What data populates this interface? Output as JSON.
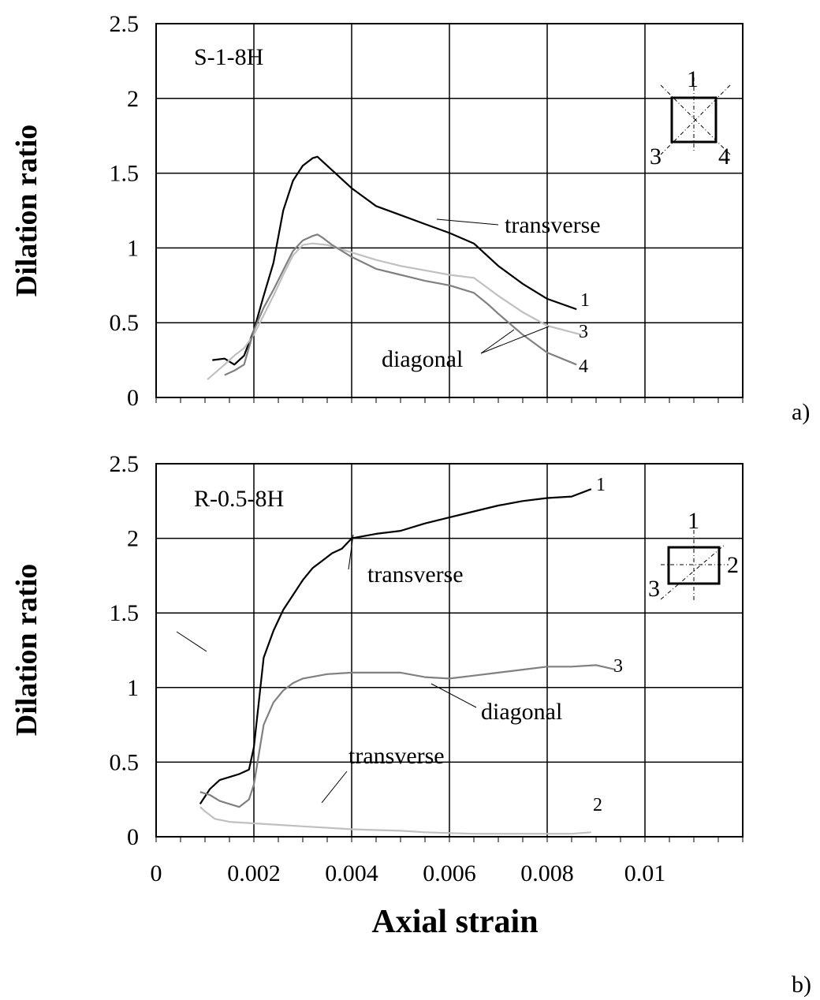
{
  "panels": [
    {
      "specimen": "S-1-8H",
      "panel_label": "a)",
      "ylabel": "Dilation ratio",
      "inset": {
        "labels": [
          "1",
          "3",
          "4"
        ]
      },
      "annotations": [
        {
          "text": "transverse"
        },
        {
          "text": "diagonal"
        }
      ]
    },
    {
      "specimen": "R-0.5-8H",
      "panel_label": "b)",
      "ylabel": "Dilation ratio",
      "inset": {
        "labels": [
          "1",
          "2",
          "3"
        ]
      },
      "annotations": [
        {
          "text": "transverse"
        },
        {
          "text": "diagonal"
        },
        {
          "text": "transverse"
        }
      ]
    }
  ],
  "xlabel": "Axial strain",
  "chart_data": [
    {
      "type": "line",
      "title": "S-1-8H",
      "xlabel": "",
      "ylabel": "Dilation ratio",
      "xlim": [
        0,
        0.012
      ],
      "ylim": [
        0,
        2.5
      ],
      "x_ticks": [
        "0",
        "0.002",
        "0.004",
        "0.006",
        "0.008",
        "0.01"
      ],
      "y_ticks": [
        "0",
        "0.5",
        "1",
        "1.5",
        "2",
        "2.5"
      ],
      "grid": true,
      "series": [
        {
          "name": "1",
          "color": "#000000",
          "x": [
            0.00115,
            0.0014,
            0.0016,
            0.0018,
            0.002,
            0.0022,
            0.0024,
            0.0026,
            0.0028,
            0.003,
            0.0032,
            0.0033,
            0.0034,
            0.0036,
            0.004,
            0.0045,
            0.005,
            0.0055,
            0.006,
            0.0065,
            0.007,
            0.0075,
            0.008,
            0.0086
          ],
          "y": [
            0.25,
            0.26,
            0.22,
            0.28,
            0.45,
            0.68,
            0.9,
            1.25,
            1.45,
            1.55,
            1.6,
            1.61,
            1.58,
            1.52,
            1.4,
            1.28,
            1.22,
            1.16,
            1.1,
            1.03,
            0.88,
            0.76,
            0.66,
            0.59
          ]
        },
        {
          "name": "3",
          "color": "#c0c0c0",
          "x": [
            0.00105,
            0.0014,
            0.0016,
            0.0018,
            0.002,
            0.0022,
            0.0024,
            0.0026,
            0.0028,
            0.003,
            0.0032,
            0.0035,
            0.004,
            0.0045,
            0.005,
            0.0055,
            0.006,
            0.0065,
            0.007,
            0.0075,
            0.008,
            0.0087
          ],
          "y": [
            0.12,
            0.22,
            0.28,
            0.33,
            0.42,
            0.55,
            0.68,
            0.82,
            0.95,
            1.02,
            1.03,
            1.02,
            0.97,
            0.92,
            0.88,
            0.85,
            0.82,
            0.8,
            0.68,
            0.57,
            0.48,
            0.42
          ]
        },
        {
          "name": "4",
          "color": "#808080",
          "x": [
            0.0014,
            0.0016,
            0.0018,
            0.002,
            0.0022,
            0.0024,
            0.0026,
            0.0028,
            0.003,
            0.0032,
            0.0033,
            0.0034,
            0.0036,
            0.004,
            0.0045,
            0.005,
            0.0055,
            0.006,
            0.0065,
            0.0068,
            0.007,
            0.0075,
            0.008,
            0.0086
          ],
          "y": [
            0.15,
            0.18,
            0.22,
            0.45,
            0.6,
            0.72,
            0.85,
            0.98,
            1.05,
            1.08,
            1.09,
            1.07,
            1.02,
            0.94,
            0.86,
            0.82,
            0.78,
            0.75,
            0.7,
            0.62,
            0.56,
            0.42,
            0.3,
            0.22
          ]
        }
      ]
    },
    {
      "type": "line",
      "title": "R-0.5-8H",
      "xlabel": "Axial strain",
      "ylabel": "Dilation ratio",
      "xlim": [
        0,
        0.012
      ],
      "ylim": [
        0,
        2.5
      ],
      "x_ticks": [
        "0",
        "0.002",
        "0.004",
        "0.006",
        "0.008",
        "0.01"
      ],
      "y_ticks": [
        "0",
        "0.5",
        "1",
        "1.5",
        "2",
        "2.5"
      ],
      "grid": true,
      "series": [
        {
          "name": "1",
          "color": "#000000",
          "x": [
            0.0009,
            0.0011,
            0.0013,
            0.0015,
            0.0017,
            0.0019,
            0.002,
            0.0021,
            0.0022,
            0.0024,
            0.0026,
            0.0028,
            0.003,
            0.0032,
            0.0034,
            0.0036,
            0.0038,
            0.004,
            0.0045,
            0.005,
            0.0055,
            0.006,
            0.0065,
            0.007,
            0.0075,
            0.008,
            0.0085,
            0.0089
          ],
          "y": [
            0.22,
            0.32,
            0.38,
            0.4,
            0.42,
            0.45,
            0.6,
            0.9,
            1.2,
            1.38,
            1.52,
            1.62,
            1.72,
            1.8,
            1.85,
            1.9,
            1.93,
            2.0,
            2.03,
            2.05,
            2.1,
            2.14,
            2.18,
            2.22,
            2.25,
            2.27,
            2.28,
            2.33
          ]
        },
        {
          "name": "3",
          "color": "#808080",
          "x": [
            0.0009,
            0.0011,
            0.0013,
            0.0015,
            0.0017,
            0.0019,
            0.002,
            0.0021,
            0.0022,
            0.0024,
            0.0026,
            0.0028,
            0.003,
            0.0035,
            0.004,
            0.0045,
            0.005,
            0.0055,
            0.006,
            0.0065,
            0.007,
            0.0075,
            0.008,
            0.0085,
            0.009,
            0.0094
          ],
          "y": [
            0.3,
            0.28,
            0.24,
            0.22,
            0.2,
            0.25,
            0.35,
            0.55,
            0.75,
            0.9,
            0.98,
            1.03,
            1.06,
            1.09,
            1.1,
            1.1,
            1.1,
            1.07,
            1.06,
            1.08,
            1.1,
            1.12,
            1.14,
            1.14,
            1.15,
            1.12
          ]
        },
        {
          "name": "2",
          "color": "#c0c0c0",
          "x": [
            0.0009,
            0.001,
            0.0012,
            0.0015,
            0.002,
            0.0025,
            0.003,
            0.0035,
            0.004,
            0.0045,
            0.005,
            0.0055,
            0.006,
            0.0065,
            0.007,
            0.0075,
            0.008,
            0.0085,
            0.0089
          ],
          "y": [
            0.2,
            0.17,
            0.12,
            0.1,
            0.09,
            0.08,
            0.07,
            0.06,
            0.05,
            0.045,
            0.04,
            0.03,
            0.025,
            0.02,
            0.02,
            0.02,
            0.02,
            0.02,
            0.03
          ]
        }
      ]
    }
  ]
}
